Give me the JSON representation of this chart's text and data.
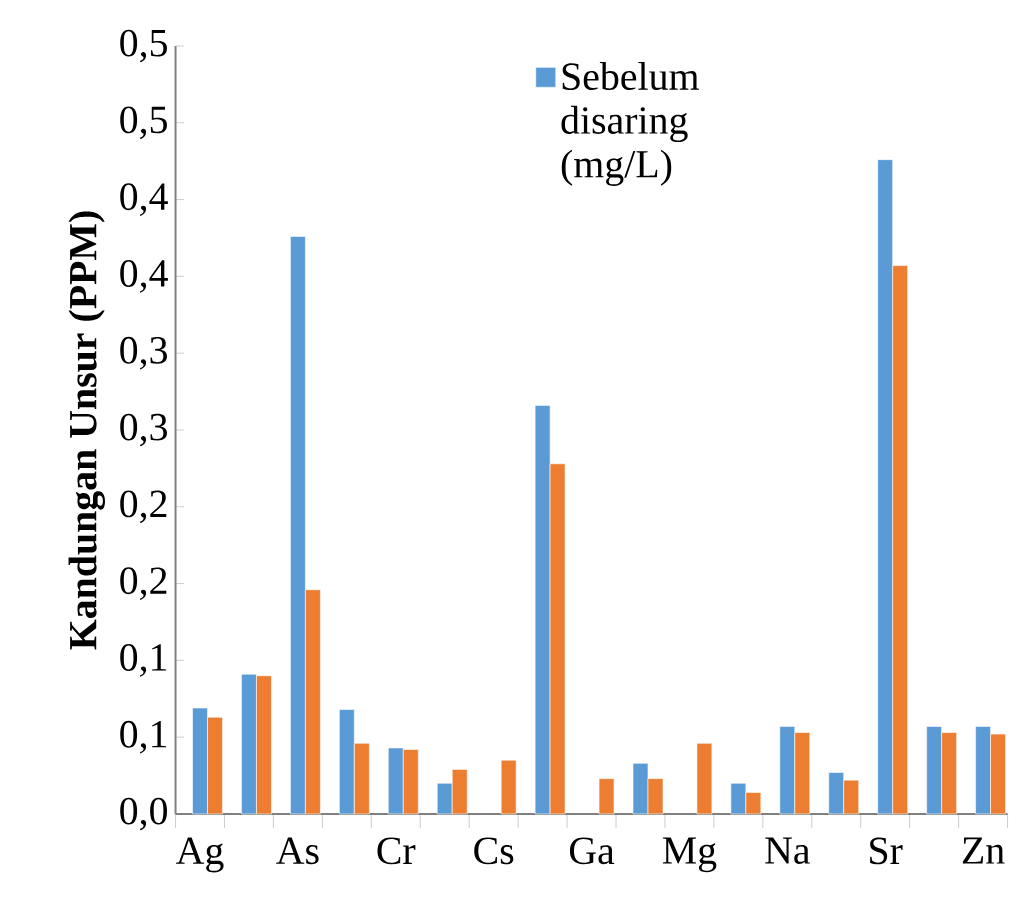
{
  "chart_data": {
    "type": "bar",
    "ylabel": "Kandungan Unsur (PPM)",
    "categories": [
      "Ag",
      null,
      "As",
      null,
      "Cr",
      null,
      "Cs",
      null,
      "Ga",
      null,
      "Mg",
      null,
      "Na",
      null,
      "Sr",
      null,
      "Zn"
    ],
    "series": [
      {
        "name": "Sebelum disaring (mg/L)",
        "color": "#5b9bd5",
        "values": [
          0.069,
          0.091,
          0.376,
          0.068,
          0.043,
          0.02,
          null,
          0.266,
          null,
          0.033,
          null,
          0.02,
          0.057,
          0.027,
          0.426,
          0.057,
          0.057
        ]
      },
      {
        "color": "#ed7d31",
        "values": [
          0.063,
          0.09,
          0.146,
          0.046,
          0.042,
          0.029,
          0.035,
          0.228,
          0.023,
          0.023,
          0.046,
          0.014,
          0.053,
          0.022,
          0.357,
          0.053,
          0.052
        ]
      }
    ],
    "ylim": [
      0,
      0.5
    ],
    "yticks": [
      {
        "value": 0,
        "label": "0,0"
      },
      {
        "value": 0.05,
        "label": "0,1"
      },
      {
        "value": 0.1,
        "label": "0,1"
      },
      {
        "value": 0.15,
        "label": "0,2"
      },
      {
        "value": 0.2,
        "label": "0,2"
      },
      {
        "value": 0.25,
        "label": "0,3"
      },
      {
        "value": 0.3,
        "label": "0,3"
      },
      {
        "value": 0.35,
        "label": "0,4"
      },
      {
        "value": 0.4,
        "label": "0,4"
      },
      {
        "value": 0.45,
        "label": "0,5"
      },
      {
        "value": 0.5,
        "label": "0,5"
      }
    ],
    "grid": false,
    "legend": "top"
  }
}
